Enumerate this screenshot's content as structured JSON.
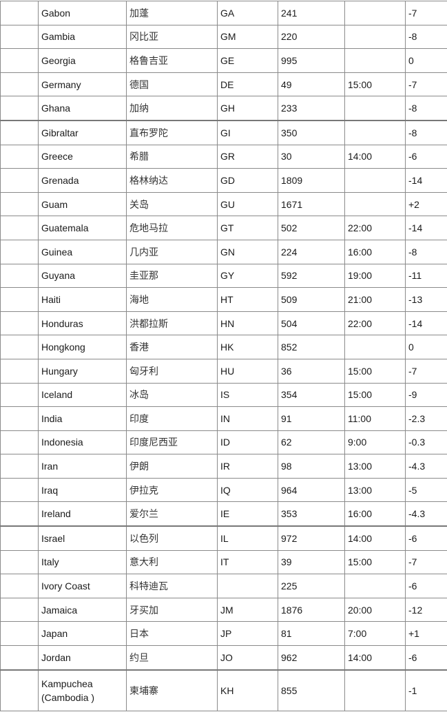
{
  "rows": [
    {
      "name": "Gabon",
      "zh": "加蓬",
      "code": "GA",
      "phone": "241",
      "time": "",
      "diff": "-7"
    },
    {
      "name": "Gambia",
      "zh": "冈比亚",
      "code": "GM",
      "phone": "220",
      "time": "",
      "diff": "-8"
    },
    {
      "name": "Georgia",
      "zh": "格鲁吉亚",
      "code": "GE",
      "phone": "995",
      "time": "",
      "diff": "0"
    },
    {
      "name": "Germany",
      "zh": "德国",
      "code": "DE",
      "phone": "49",
      "time": "15:00",
      "diff": "-7"
    },
    {
      "name": "Ghana",
      "zh": "加纳",
      "code": "GH",
      "phone": "233",
      "time": "",
      "diff": "-8"
    },
    {
      "name": "Gibraltar",
      "zh": "直布罗陀",
      "code": "GI",
      "phone": "350",
      "time": "",
      "diff": "-8"
    },
    {
      "name": "Greece",
      "zh": "希腊",
      "code": "GR",
      "phone": "30",
      "time": "14:00",
      "diff": "-6"
    },
    {
      "name": "Grenada",
      "zh": "格林纳达",
      "code": "GD",
      "phone": "1809",
      "time": "",
      "diff": "-14"
    },
    {
      "name": "Guam",
      "zh": "关岛",
      "code": "GU",
      "phone": "1671",
      "time": "",
      "diff": "+2"
    },
    {
      "name": "Guatemala",
      "zh": "危地马拉",
      "code": "GT",
      "phone": "502",
      "time": "22:00",
      "diff": "-14"
    },
    {
      "name": "Guinea",
      "zh": "几内亚",
      "code": "GN",
      "phone": "224",
      "time": "16:00",
      "diff": "-8"
    },
    {
      "name": "Guyana",
      "zh": "圭亚那",
      "code": "GY",
      "phone": "592",
      "time": "19:00",
      "diff": "-11"
    },
    {
      "name": "Haiti",
      "zh": "海地",
      "code": "HT",
      "phone": "509",
      "time": "21:00",
      "diff": "-13"
    },
    {
      "name": "Honduras",
      "zh": "洪都拉斯",
      "code": "HN",
      "phone": "504",
      "time": "22:00",
      "diff": "-14"
    },
    {
      "name": "Hongkong",
      "zh": "香港",
      "code": "HK",
      "phone": "852",
      "time": "",
      "diff": "0"
    },
    {
      "name": "Hungary",
      "zh": "匈牙利",
      "code": "HU",
      "phone": "36",
      "time": "15:00",
      "diff": "-7"
    },
    {
      "name": "Iceland",
      "zh": "冰岛",
      "code": "IS",
      "phone": "354",
      "time": "15:00",
      "diff": "-9"
    },
    {
      "name": "India",
      "zh": "印度",
      "code": "IN",
      "phone": "91",
      "time": "11:00",
      "diff": "-2.3"
    },
    {
      "name": "Indonesia",
      "zh": "印度尼西亚",
      "code": "ID",
      "phone": "62",
      "time": "9:00",
      "diff": "-0.3"
    },
    {
      "name": "Iran",
      "zh": "伊朗",
      "code": "IR",
      "phone": "98",
      "time": "13:00",
      "diff": "-4.3"
    },
    {
      "name": "Iraq",
      "zh": "伊拉克",
      "code": "IQ",
      "phone": "964",
      "time": "13:00",
      "diff": "-5"
    },
    {
      "name": "Ireland",
      "zh": "爱尔兰",
      "code": "IE",
      "phone": "353",
      "time": "16:00",
      "diff": "-4.3"
    },
    {
      "name": "Israel",
      "zh": "以色列",
      "code": "IL",
      "phone": "972",
      "time": "14:00",
      "diff": "-6"
    },
    {
      "name": "Italy",
      "zh": "意大利",
      "code": "IT",
      "phone": "39",
      "time": "15:00",
      "diff": "-7"
    },
    {
      "name": "Ivory Coast",
      "zh": "科特迪瓦",
      "code": "",
      "phone": "225",
      "time": "",
      "diff": "-6"
    },
    {
      "name": "Jamaica",
      "zh": "牙买加",
      "code": "JM",
      "phone": "1876",
      "time": "20:00",
      "diff": "-12"
    },
    {
      "name": "Japan",
      "zh": "日本",
      "code": "JP",
      "phone": "81",
      "time": "7:00",
      "diff": "+1"
    },
    {
      "name": "Jordan",
      "zh": "约旦",
      "code": "JO",
      "phone": "962",
      "time": "14:00",
      "diff": "-6"
    },
    {
      "name": "Kampuchea (Cambodia )",
      "zh": "柬埔寨",
      "code": "KH",
      "phone": "855",
      "time": "",
      "diff": "-1"
    }
  ]
}
